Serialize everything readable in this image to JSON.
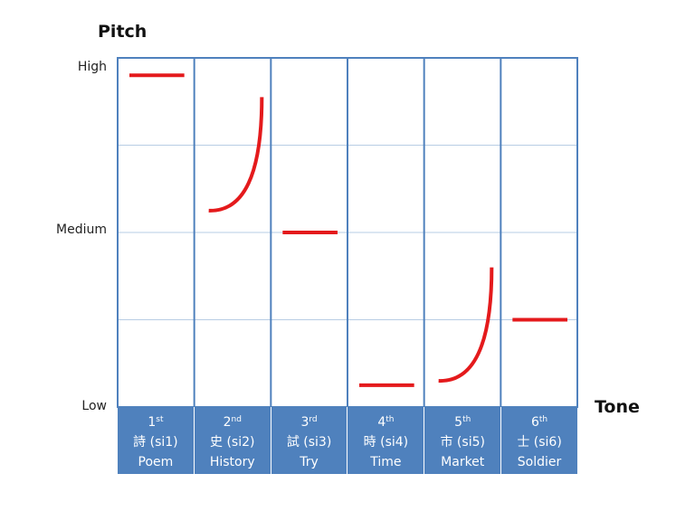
{
  "chart_data": {
    "type": "line",
    "title": "",
    "ylabel": "Pitch",
    "xlabel": "Tone",
    "y_ticks": [
      "High",
      "Medium",
      "Low"
    ],
    "ylim": [
      0,
      4
    ],
    "grid": true,
    "line_color": "#e41a1c",
    "grid_color": "#b7cde4",
    "border_color": "#4f81bd",
    "header_color": "#4f81bd",
    "categories": [
      {
        "ordinal_num": "1",
        "ordinal_sup": "st",
        "char": "詩 (si1)",
        "meaning": "Poem",
        "shape": "level",
        "pitch_start": 3.8,
        "pitch_end": 3.8
      },
      {
        "ordinal_num": "2",
        "ordinal_sup": "nd",
        "char": "史 (si2)",
        "meaning": "History",
        "shape": "rising",
        "pitch_start": 2.25,
        "pitch_end": 3.55
      },
      {
        "ordinal_num": "3",
        "ordinal_sup": "rd",
        "char": "試 (si3)",
        "meaning": "Try",
        "shape": "level",
        "pitch_start": 2.0,
        "pitch_end": 2.0
      },
      {
        "ordinal_num": "4",
        "ordinal_sup": "th",
        "char": "時 (si4)",
        "meaning": "Time",
        "shape": "level",
        "pitch_start": 0.25,
        "pitch_end": 0.25
      },
      {
        "ordinal_num": "5",
        "ordinal_sup": "th",
        "char": "市 (si5)",
        "meaning": "Market",
        "shape": "rising",
        "pitch_start": 0.3,
        "pitch_end": 1.6
      },
      {
        "ordinal_num": "6",
        "ordinal_sup": "th",
        "char": "士 (si6)",
        "meaning": "Soldier",
        "shape": "level",
        "pitch_start": 1.0,
        "pitch_end": 1.0
      }
    ]
  }
}
